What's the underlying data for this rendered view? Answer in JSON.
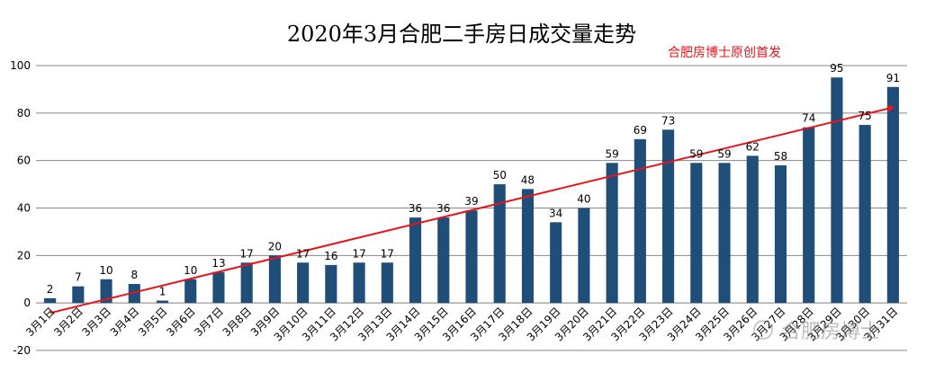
{
  "chart_data": {
    "type": "bar",
    "title": "2020年3月合肥二手房日成交量走势",
    "annotation": "合肥房博士原创首发",
    "watermark": "合肥房博士",
    "categories": [
      "3月1日",
      "3月2日",
      "3月3日",
      "3月4日",
      "3月5日",
      "3月6日",
      "3月7日",
      "3月8日",
      "3月9日",
      "3月10日",
      "3月11日",
      "3月12日",
      "3月13日",
      "3月14日",
      "3月15日",
      "3月16日",
      "3月17日",
      "3月18日",
      "3月19日",
      "3月20日",
      "3月21日",
      "3月22日",
      "3月23日",
      "3月24日",
      "3月25日",
      "3月26日",
      "3月27日",
      "3月28日",
      "3月29日",
      "3月30日",
      "3月31日"
    ],
    "values": [
      2,
      7,
      10,
      8,
      1,
      10,
      13,
      17,
      20,
      17,
      16,
      17,
      17,
      36,
      36,
      39,
      50,
      48,
      34,
      40,
      59,
      69,
      73,
      59,
      59,
      62,
      58,
      74,
      95,
      75,
      91
    ],
    "ylim": [
      -20,
      100
    ],
    "yticks": [
      -20,
      0,
      20,
      40,
      60,
      80,
      100
    ],
    "xlabel": "",
    "ylabel": "",
    "trendline": {
      "type": "linear",
      "color": "#e8141c"
    },
    "bar_color": "#1f4e79",
    "grid": true
  }
}
